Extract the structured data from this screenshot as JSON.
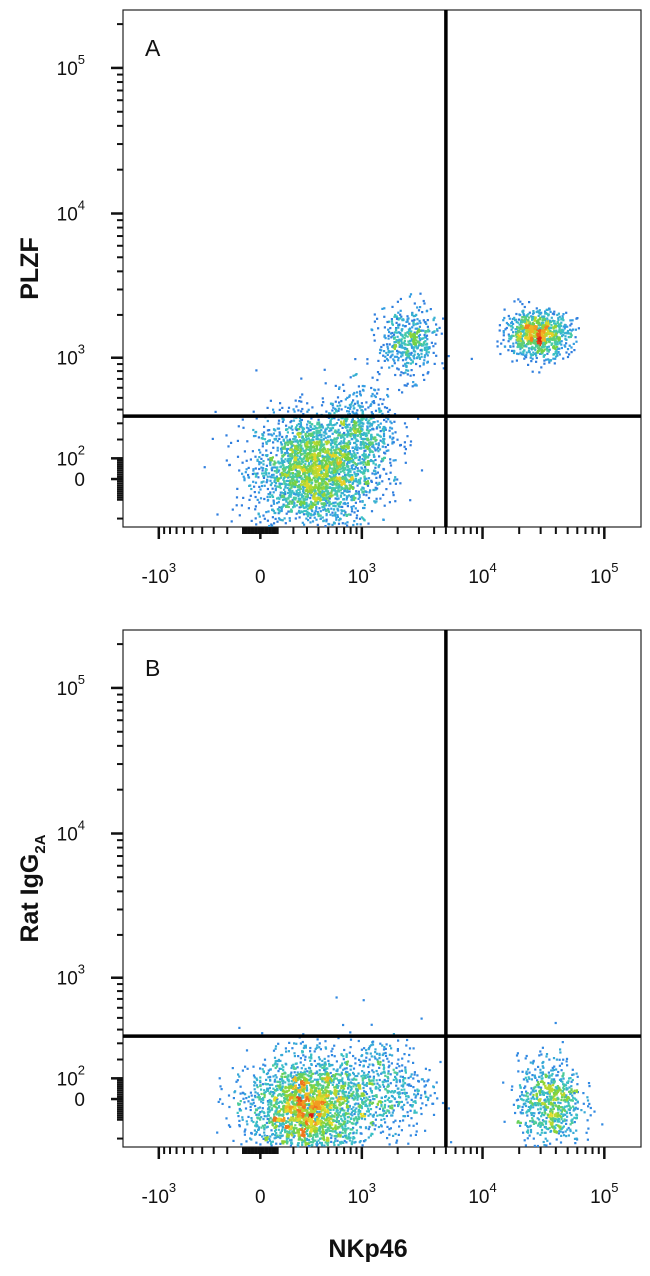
{
  "chart_data": [
    {
      "type": "scatter",
      "subtype": "flow-cytometry-density",
      "panel_label": "A",
      "ylabel": "PLZF",
      "xlabel": "",
      "x_scale": "biexponential",
      "y_scale": "biexponential",
      "x_ticks": [
        {
          "value": -1000,
          "base": "-10",
          "exp": "3"
        },
        {
          "value": 0,
          "base": "0",
          "exp": ""
        },
        {
          "value": 1000,
          "base": "10",
          "exp": "3"
        },
        {
          "value": 10000,
          "base": "10",
          "exp": "4"
        },
        {
          "value": 100000,
          "base": "10",
          "exp": "5"
        }
      ],
      "y_ticks": [
        {
          "value": 0,
          "base": "0",
          "exp": ""
        },
        {
          "value": 100,
          "base": "10",
          "exp": "2"
        },
        {
          "value": 1000,
          "base": "10",
          "exp": "3"
        },
        {
          "value": 10000,
          "base": "10",
          "exp": "4"
        },
        {
          "value": 100000,
          "base": "10",
          "exp": "5"
        }
      ],
      "xlim": [
        -2000,
        200000
      ],
      "ylim": [
        -250,
        250000
      ],
      "quadrant_gate": {
        "x": 5000,
        "y": 350
      },
      "populations": [
        {
          "cx": 350,
          "cy": 40,
          "sx": 0.55,
          "sy": 0.45,
          "count": 2600
        },
        {
          "cx": 1000,
          "cy": 250,
          "sx": 0.35,
          "sy": 0.35,
          "count": 500
        },
        {
          "cx": 2400,
          "cy": 1300,
          "sx": 0.28,
          "sy": 0.28,
          "count": 450
        },
        {
          "cx": 28000,
          "cy": 1500,
          "sx": 0.3,
          "sy": 0.18,
          "count": 900
        }
      ]
    },
    {
      "type": "scatter",
      "subtype": "flow-cytometry-density",
      "panel_label": "B",
      "ylabel": "Rat IgG",
      "ylabel_sub": "2A",
      "xlabel": "NKp46",
      "x_scale": "biexponential",
      "y_scale": "biexponential",
      "x_ticks": [
        {
          "value": -1000,
          "base": "-10",
          "exp": "3"
        },
        {
          "value": 0,
          "base": "0",
          "exp": ""
        },
        {
          "value": 1000,
          "base": "10",
          "exp": "3"
        },
        {
          "value": 10000,
          "base": "10",
          "exp": "4"
        },
        {
          "value": 100000,
          "base": "10",
          "exp": "5"
        }
      ],
      "y_ticks": [
        {
          "value": 0,
          "base": "0",
          "exp": ""
        },
        {
          "value": 100,
          "base": "10",
          "exp": "2"
        },
        {
          "value": 1000,
          "base": "10",
          "exp": "3"
        },
        {
          "value": 10000,
          "base": "10",
          "exp": "4"
        },
        {
          "value": 100000,
          "base": "10",
          "exp": "5"
        }
      ],
      "xlim": [
        -2000,
        200000
      ],
      "ylim": [
        -250,
        250000
      ],
      "quadrant_gate": {
        "x": 5000,
        "y": 350
      },
      "populations": [
        {
          "cx": 300,
          "cy": -40,
          "sx": 0.55,
          "sy": 0.4,
          "count": 2400
        },
        {
          "cx": 1500,
          "cy": 60,
          "sx": 0.45,
          "sy": 0.4,
          "count": 500
        },
        {
          "cx": 35000,
          "cy": -10,
          "sx": 0.3,
          "sy": 0.35,
          "count": 700
        }
      ]
    }
  ]
}
